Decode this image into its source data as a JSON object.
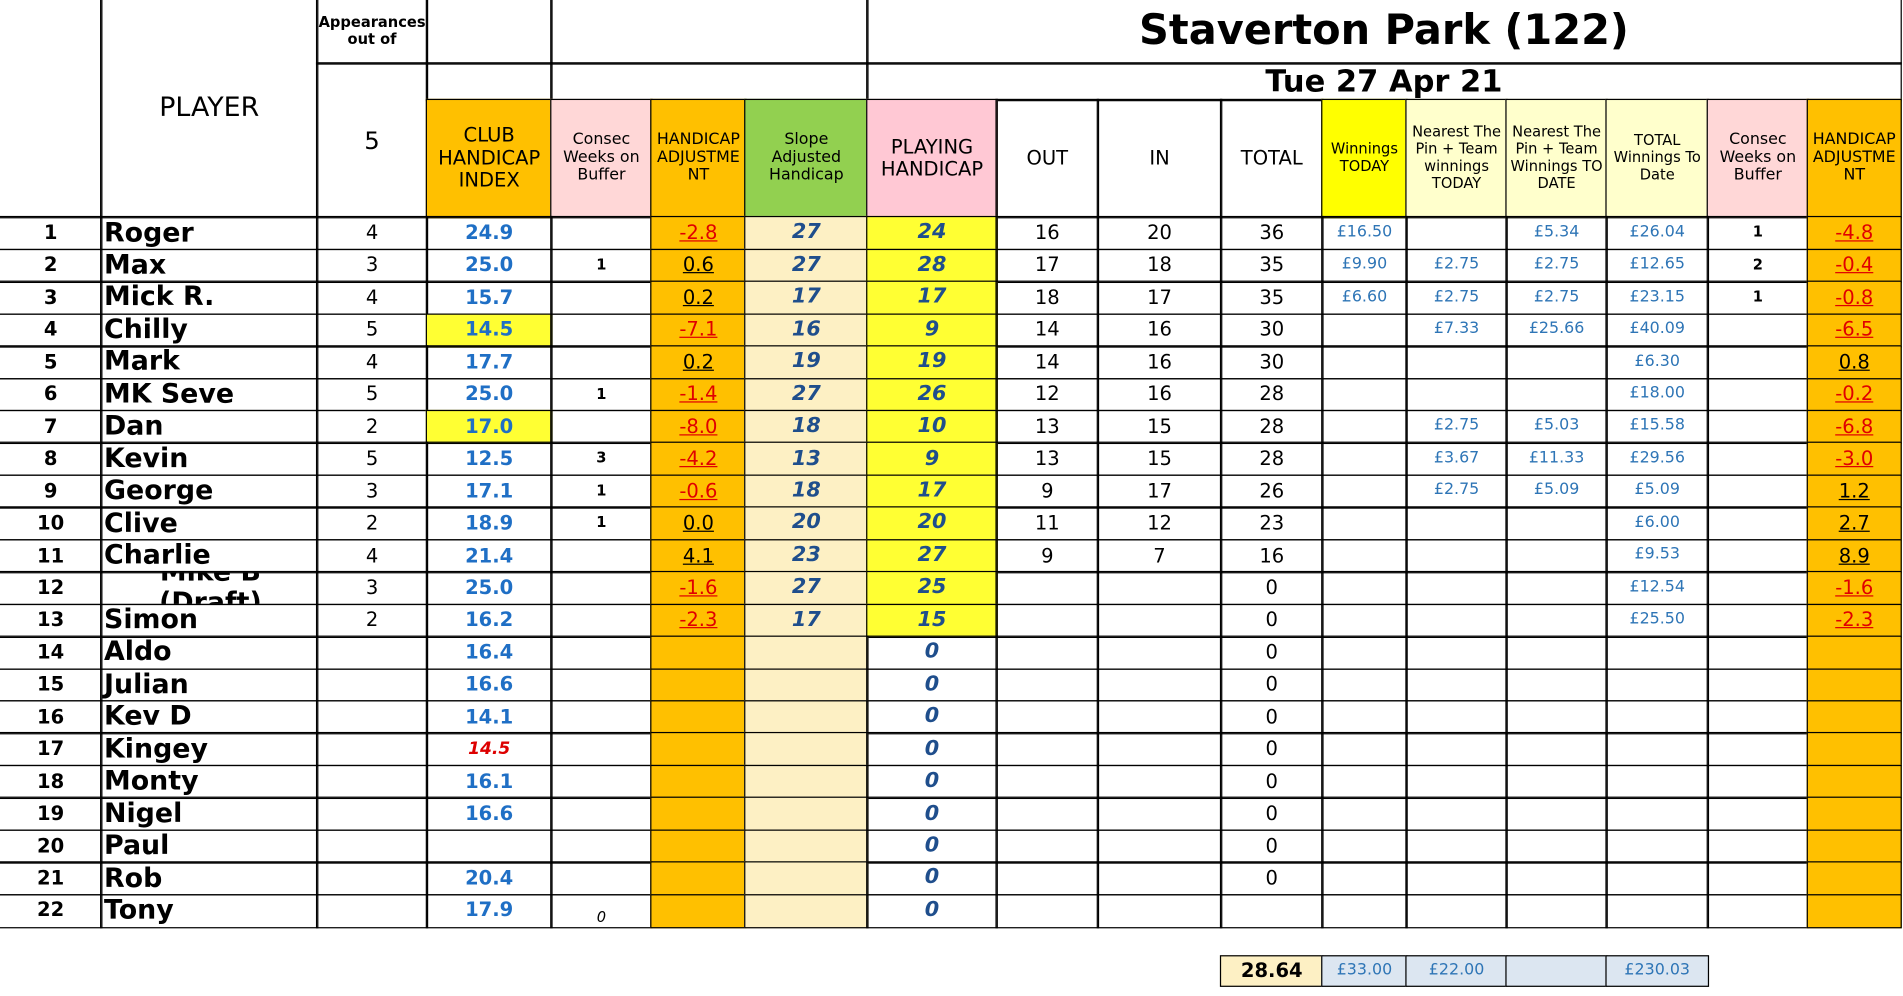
{
  "header": {
    "player": "PLAYER",
    "appearances_label": "Appearances out of",
    "appearances_total": "5",
    "title": "Staverton Park (122)",
    "date": "Tue 27 Apr 21",
    "columns": [
      "CLUB HANDICAP INDEX",
      "Consec Weeks on Buffer",
      "HANDICAP ADJUSTMENT",
      "Slope Adjusted Handicap",
      "PLAYING HANDICAP",
      "OUT",
      "IN",
      "TOTAL",
      "Winnings TODAY",
      "Nearest The Pin + Team winnings TODAY",
      "Nearest The Pin + Team Winnings TO DATE",
      "TOTAL Winnings To Date",
      "Consec Weeks on Buffer",
      "HANDICAP ADJUSTMENT"
    ]
  },
  "table": {
    "rows": [
      [
        "1",
        "Roger",
        "4",
        "24.9",
        null,
        "-2.8",
        "27",
        "24",
        "16",
        "20",
        "36",
        "£16.50",
        null,
        "£5.34",
        "£26.04",
        "1",
        "-4.8"
      ],
      [
        "2",
        "Max",
        "3",
        "25.0",
        "1",
        "0.6",
        "27",
        "28",
        "17",
        "18",
        "35",
        "£9.90",
        "£2.75",
        "£2.75",
        "£12.65",
        "2",
        "-0.4"
      ],
      [
        "3",
        "Mick R.",
        "4",
        "15.7",
        null,
        "0.2",
        "17",
        "17",
        "18",
        "17",
        "35",
        "£6.60",
        "£2.75",
        "£2.75",
        "£23.15",
        "1",
        "-0.8"
      ],
      [
        "4",
        "Chilly",
        "5",
        "14.5",
        null,
        "-7.1",
        "16",
        "9",
        "14",
        "16",
        "30",
        null,
        "£7.33",
        "£25.66",
        "£40.09",
        null,
        "-6.5"
      ],
      [
        "5",
        "Mark",
        "4",
        "17.7",
        null,
        "0.2",
        "19",
        "19",
        "14",
        "16",
        "30",
        null,
        null,
        null,
        "£6.30",
        null,
        "0.8"
      ],
      [
        "6",
        "MK Seve",
        "5",
        "25.0",
        "1",
        "-1.4",
        "27",
        "26",
        "12",
        "16",
        "28",
        null,
        null,
        null,
        "£18.00",
        null,
        "-0.2"
      ],
      [
        "7",
        "Dan",
        "2",
        "17.0",
        null,
        "-8.0",
        "18",
        "10",
        "13",
        "15",
        "28",
        null,
        "£2.75",
        "£5.03",
        "£15.58",
        null,
        "-6.8"
      ],
      [
        "8",
        "Kevin",
        "5",
        "12.5",
        "3",
        "-4.2",
        "13",
        "9",
        "13",
        "15",
        "28",
        null,
        "£3.67",
        "£11.33",
        "£29.56",
        null,
        "-3.0"
      ],
      [
        "9",
        "George",
        "3",
        "17.1",
        "1",
        "-0.6",
        "18",
        "17",
        "9",
        "17",
        "26",
        null,
        "£2.75",
        "£5.09",
        "£5.09",
        null,
        "1.2"
      ],
      [
        "10",
        "Clive",
        "2",
        "18.9",
        "1",
        "0.0",
        "20",
        "20",
        "11",
        "12",
        "23",
        null,
        null,
        null,
        "£6.00",
        null,
        "2.7"
      ],
      [
        "11",
        "Charlie",
        "4",
        "21.4",
        null,
        "4.1",
        "23",
        "27",
        "9",
        "7",
        "16",
        null,
        null,
        null,
        "£9.53",
        null,
        "8.9"
      ],
      [
        "12",
        "Mike B (Draft)",
        "3",
        "25.0",
        null,
        "-1.6",
        "27",
        "25",
        null,
        null,
        "0",
        null,
        null,
        null,
        "£12.54",
        null,
        "-1.6"
      ],
      [
        "13",
        "Simon",
        "2",
        "16.2",
        null,
        "-2.3",
        "17",
        "15",
        null,
        null,
        "0",
        null,
        null,
        null,
        "£25.50",
        null,
        "-2.3"
      ],
      [
        "14",
        "Aldo",
        null,
        "16.4",
        null,
        null,
        null,
        "0",
        null,
        null,
        "0",
        null,
        null,
        null,
        null,
        null,
        null
      ],
      [
        "15",
        "Julian",
        null,
        "16.6",
        null,
        null,
        null,
        "0",
        null,
        null,
        "0",
        null,
        null,
        null,
        null,
        null,
        null
      ],
      [
        "16",
        "Kev D",
        null,
        "14.1",
        null,
        null,
        null,
        "0",
        null,
        null,
        "0",
        null,
        null,
        null,
        null,
        null,
        null
      ],
      [
        "17",
        "Kingey",
        null,
        "14.5",
        null,
        null,
        null,
        "0",
        null,
        null,
        "0",
        null,
        null,
        null,
        null,
        null,
        null
      ],
      [
        "18",
        "Monty",
        null,
        "16.1",
        null,
        null,
        null,
        "0",
        null,
        null,
        "0",
        null,
        null,
        null,
        null,
        null,
        null
      ],
      [
        "19",
        "Nigel",
        null,
        "16.6",
        null,
        null,
        null,
        "0",
        null,
        null,
        "0",
        null,
        null,
        null,
        null,
        null,
        null
      ],
      [
        "20",
        "Paul",
        null,
        null,
        null,
        null,
        null,
        "0",
        null,
        null,
        "0",
        null,
        null,
        null,
        null,
        null,
        null
      ],
      [
        "21",
        "Rob",
        null,
        "20.4",
        null,
        null,
        null,
        "0",
        null,
        null,
        "0",
        null,
        null,
        null,
        null,
        null,
        null
      ],
      [
        "22",
        "Tony",
        null,
        "17.9",
        "0",
        null,
        null,
        "0",
        null,
        null,
        null,
        null,
        null,
        null,
        null,
        null,
        null
      ]
    ]
  },
  "footer": [
    "28.64",
    "£33.00",
    "£22.00",
    null,
    "£230.03"
  ]
}
